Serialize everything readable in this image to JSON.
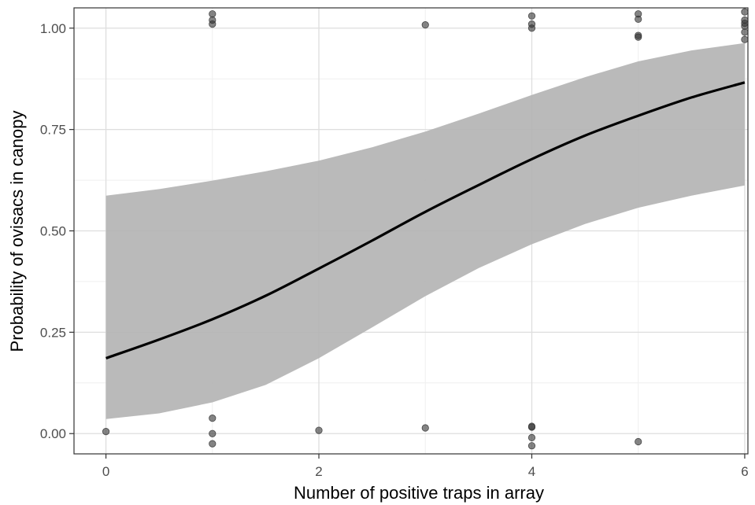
{
  "chart_data": {
    "type": "scatter",
    "title": "",
    "xlabel": "Number of positive traps in array",
    "ylabel": "Probability of ovisacs in canopy",
    "xlim": [
      -0.3,
      6.03
    ],
    "ylim": [
      -0.05,
      1.05
    ],
    "x_ticks": [
      0,
      2,
      4,
      6
    ],
    "x_tick_labels": [
      "0",
      "2",
      "4",
      "6"
    ],
    "y_ticks": [
      0,
      0.25,
      0.5,
      0.75,
      1.0
    ],
    "y_tick_labels": [
      "0.00",
      "0.25",
      "0.50",
      "0.75",
      "1.00"
    ],
    "grid": true,
    "legend": "none",
    "colors": {
      "point": "#333333",
      "ribbon": "#b3b3b3",
      "line": "#000000",
      "grid_major": "#dedede",
      "grid_minor": "#efefef",
      "frame": "#333333"
    },
    "points": [
      {
        "x": 0,
        "y": 0.005
      },
      {
        "x": 1,
        "y": 1.035
      },
      {
        "x": 1,
        "y": 1.02
      },
      {
        "x": 1,
        "y": 1.01
      },
      {
        "x": 1,
        "y": 0.038
      },
      {
        "x": 1,
        "y": 0.0
      },
      {
        "x": 1,
        "y": -0.025
      },
      {
        "x": 2,
        "y": 0.008
      },
      {
        "x": 3,
        "y": 1.008
      },
      {
        "x": 3,
        "y": 0.014
      },
      {
        "x": 4,
        "y": 1.03
      },
      {
        "x": 4,
        "y": 1.01
      },
      {
        "x": 4,
        "y": 1.0
      },
      {
        "x": 4,
        "y": 0.018
      },
      {
        "x": 4,
        "y": 0.016
      },
      {
        "x": 4,
        "y": -0.01
      },
      {
        "x": 4,
        "y": -0.03
      },
      {
        "x": 5,
        "y": 1.035
      },
      {
        "x": 5,
        "y": 1.022
      },
      {
        "x": 5,
        "y": 0.982
      },
      {
        "x": 5,
        "y": 0.978
      },
      {
        "x": 5,
        "y": -0.02
      },
      {
        "x": 6,
        "y": 1.04
      },
      {
        "x": 6,
        "y": 1.02
      },
      {
        "x": 6,
        "y": 1.012
      },
      {
        "x": 6,
        "y": 1.005
      },
      {
        "x": 6,
        "y": 0.99
      },
      {
        "x": 6,
        "y": 0.972
      }
    ],
    "fit_line": {
      "x": [
        0,
        0.5,
        1,
        1.5,
        2,
        2.5,
        3,
        3.5,
        4,
        4.5,
        5,
        5.5,
        6
      ],
      "y": [
        0.186,
        0.232,
        0.282,
        0.34,
        0.407,
        0.476,
        0.547,
        0.613,
        0.677,
        0.735,
        0.784,
        0.829,
        0.866
      ]
    },
    "confidence_band": {
      "x": [
        0,
        0.5,
        1,
        1.5,
        2,
        2.5,
        3,
        3.5,
        4,
        4.5,
        5,
        5.5,
        6
      ],
      "lower": [
        0.036,
        0.05,
        0.077,
        0.12,
        0.186,
        0.262,
        0.339,
        0.408,
        0.467,
        0.517,
        0.557,
        0.587,
        0.612
      ],
      "upper": [
        0.587,
        0.603,
        0.624,
        0.647,
        0.673,
        0.706,
        0.745,
        0.789,
        0.835,
        0.879,
        0.918,
        0.945,
        0.963
      ]
    }
  }
}
